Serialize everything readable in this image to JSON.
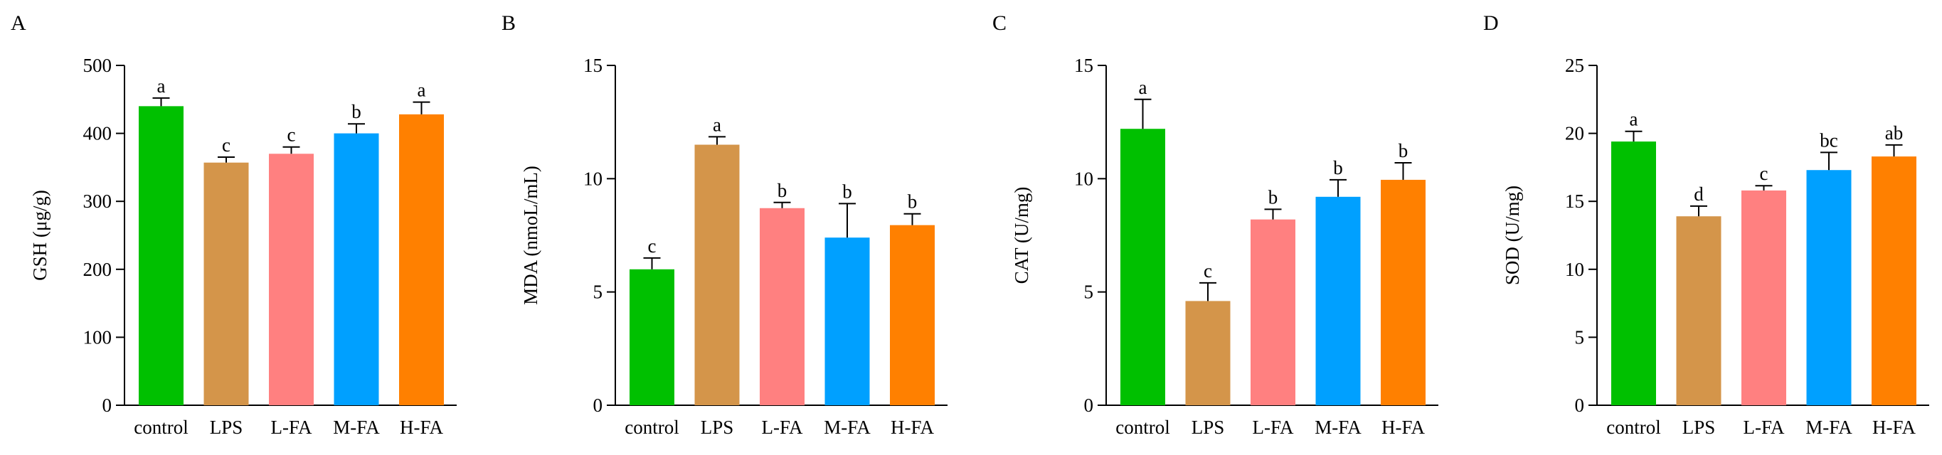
{
  "colors": {
    "control": "#00c000",
    "LPS": "#d4954a",
    "L-FA": "#ff8080",
    "M-FA": "#00a0ff",
    "H-FA": "#ff8000",
    "axis": "#000000"
  },
  "chart_data": [
    {
      "type": "bar",
      "panel": "A",
      "ylabel": "GSH (μg/g)",
      "ylim": [
        0,
        500
      ],
      "yticks": [
        0,
        100,
        200,
        300,
        400,
        500
      ],
      "categories": [
        "control",
        "LPS",
        "L-FA",
        "M-FA",
        "H-FA"
      ],
      "values": [
        440,
        357,
        370,
        400,
        428
      ],
      "errors": [
        12,
        8,
        10,
        14,
        18
      ],
      "letters": [
        "a",
        "c",
        "c",
        "b",
        "a"
      ]
    },
    {
      "type": "bar",
      "panel": "B",
      "ylabel": "MDA (nmoL/mL)",
      "ylim": [
        0,
        15
      ],
      "yticks": [
        0,
        5,
        10,
        15
      ],
      "categories": [
        "control",
        "LPS",
        "L-FA",
        "M-FA",
        "H-FA"
      ],
      "values": [
        6.0,
        11.5,
        8.7,
        7.4,
        7.95
      ],
      "errors": [
        0.5,
        0.35,
        0.25,
        1.5,
        0.5
      ],
      "letters": [
        "c",
        "a",
        "b",
        "b",
        "b"
      ]
    },
    {
      "type": "bar",
      "panel": "C",
      "ylabel": "CAT (U/mg)",
      "ylim": [
        0,
        15
      ],
      "yticks": [
        0,
        5,
        10,
        15
      ],
      "categories": [
        "control",
        "LPS",
        "L-FA",
        "M-FA",
        "H-FA"
      ],
      "values": [
        12.2,
        4.6,
        8.2,
        9.2,
        9.95
      ],
      "errors": [
        1.3,
        0.8,
        0.45,
        0.75,
        0.75
      ],
      "letters": [
        "a",
        "c",
        "b",
        "b",
        "b"
      ]
    },
    {
      "type": "bar",
      "panel": "D",
      "ylabel": "SOD (U/mg)",
      "ylim": [
        0,
        25
      ],
      "yticks": [
        0,
        5,
        10,
        15,
        20,
        25
      ],
      "categories": [
        "control",
        "LPS",
        "L-FA",
        "M-FA",
        "H-FA"
      ],
      "values": [
        19.4,
        13.9,
        15.8,
        17.3,
        18.3
      ],
      "errors": [
        0.75,
        0.75,
        0.35,
        1.3,
        0.85
      ],
      "letters": [
        "a",
        "d",
        "c",
        "bc",
        "ab"
      ]
    }
  ]
}
